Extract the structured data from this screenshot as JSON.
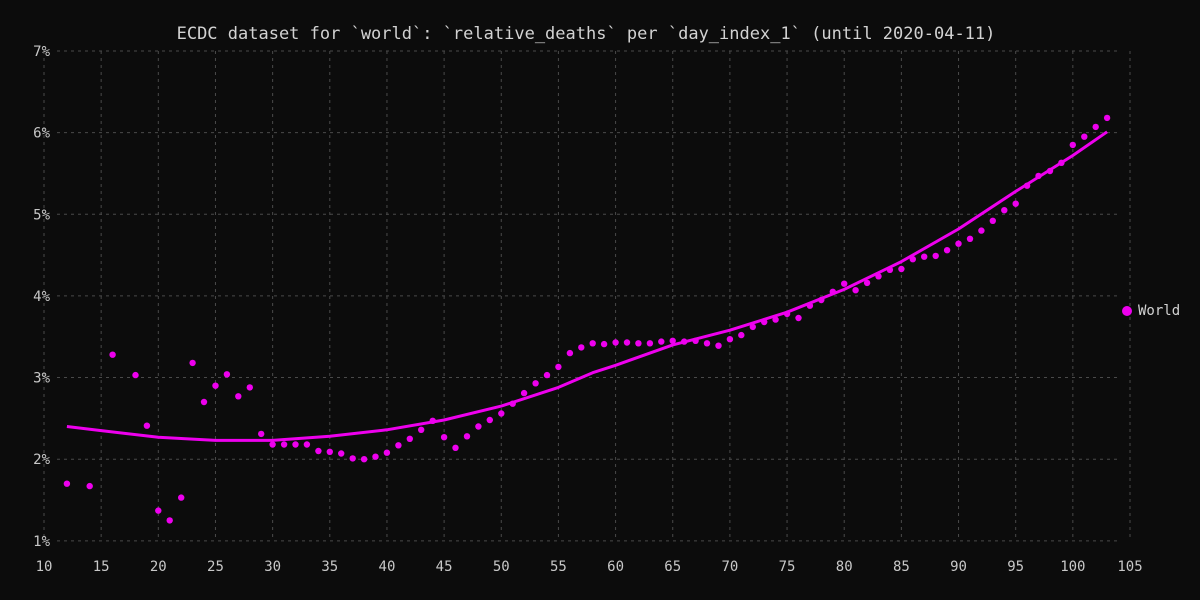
{
  "chart_data": {
    "type": "scatter",
    "title": "ECDC dataset for `world`: `relative_deaths` per `day_index_1` (until 2020-04-11)",
    "xlabel": "",
    "ylabel": "",
    "xlim": [
      10,
      105
    ],
    "ylim": [
      0.009,
      0.07
    ],
    "x_ticks": [
      "10",
      "15",
      "20",
      "25",
      "30",
      "35",
      "40",
      "45",
      "50",
      "55",
      "60",
      "65",
      "70",
      "75",
      "80",
      "85",
      "90",
      "95",
      "100",
      "105"
    ],
    "y_ticks": [
      "1%",
      "2%",
      "3%",
      "4%",
      "5%",
      "6%",
      "7%"
    ],
    "grid": true,
    "legend_position": "right",
    "series": [
      {
        "name": "World",
        "color": "#ee00ee",
        "points": [
          [
            12,
            0.017
          ],
          [
            14,
            0.0167
          ],
          [
            16,
            0.0328
          ],
          [
            18,
            0.0303
          ],
          [
            19,
            0.0241
          ],
          [
            20,
            0.0137
          ],
          [
            21,
            0.0125
          ],
          [
            22,
            0.0153
          ],
          [
            23,
            0.0318
          ],
          [
            24,
            0.027
          ],
          [
            25,
            0.029
          ],
          [
            26,
            0.0304
          ],
          [
            27,
            0.0277
          ],
          [
            28,
            0.0288
          ],
          [
            29,
            0.0231
          ],
          [
            30,
            0.0218
          ],
          [
            31,
            0.0218
          ],
          [
            32,
            0.0218
          ],
          [
            33,
            0.0218
          ],
          [
            34,
            0.021
          ],
          [
            35,
            0.0209
          ],
          [
            36,
            0.0207
          ],
          [
            37,
            0.0201
          ],
          [
            38,
            0.02
          ],
          [
            39,
            0.0203
          ],
          [
            40,
            0.0208
          ],
          [
            41,
            0.0217
          ],
          [
            42,
            0.0225
          ],
          [
            43,
            0.0236
          ],
          [
            44,
            0.0247
          ],
          [
            45,
            0.0227
          ],
          [
            46,
            0.0214
          ],
          [
            47,
            0.0228
          ],
          [
            48,
            0.024
          ],
          [
            49,
            0.0248
          ],
          [
            50,
            0.0256
          ],
          [
            51,
            0.0268
          ],
          [
            52,
            0.0281
          ],
          [
            53,
            0.0293
          ],
          [
            54,
            0.0303
          ],
          [
            55,
            0.0313
          ],
          [
            56,
            0.033
          ],
          [
            57,
            0.0337
          ],
          [
            58,
            0.0342
          ],
          [
            59,
            0.0341
          ],
          [
            60,
            0.0343
          ],
          [
            61,
            0.0343
          ],
          [
            62,
            0.0342
          ],
          [
            63,
            0.0342
          ],
          [
            64,
            0.0344
          ],
          [
            65,
            0.0345
          ],
          [
            66,
            0.0344
          ],
          [
            67,
            0.0345
          ],
          [
            68,
            0.0342
          ],
          [
            69,
            0.0339
          ],
          [
            70,
            0.0347
          ],
          [
            71,
            0.0352
          ],
          [
            72,
            0.0362
          ],
          [
            73,
            0.0368
          ],
          [
            74,
            0.0371
          ],
          [
            75,
            0.0378
          ],
          [
            76,
            0.0373
          ],
          [
            77,
            0.0388
          ],
          [
            78,
            0.0395
          ],
          [
            79,
            0.0405
          ],
          [
            80,
            0.0415
          ],
          [
            81,
            0.0407
          ],
          [
            82,
            0.0416
          ],
          [
            83,
            0.0424
          ],
          [
            84,
            0.0432
          ],
          [
            85,
            0.0433
          ],
          [
            86,
            0.0445
          ],
          [
            87,
            0.0448
          ],
          [
            88,
            0.0449
          ],
          [
            89,
            0.0456
          ],
          [
            90,
            0.0464
          ],
          [
            91,
            0.047
          ],
          [
            92,
            0.048
          ],
          [
            93,
            0.0492
          ],
          [
            94,
            0.0505
          ],
          [
            95,
            0.0513
          ],
          [
            96,
            0.0535
          ],
          [
            97,
            0.0547
          ],
          [
            98,
            0.0553
          ],
          [
            99,
            0.0563
          ],
          [
            100,
            0.0585
          ],
          [
            101,
            0.0595
          ],
          [
            102,
            0.0607
          ],
          [
            103,
            0.0618
          ]
        ]
      },
      {
        "type": "line",
        "color": "#ee00ee",
        "points": [
          [
            12,
            0.024
          ],
          [
            15,
            0.0235
          ],
          [
            20,
            0.0227
          ],
          [
            25,
            0.0223
          ],
          [
            30,
            0.0223
          ],
          [
            35,
            0.0228
          ],
          [
            40,
            0.0236
          ],
          [
            45,
            0.0248
          ],
          [
            50,
            0.0265
          ],
          [
            55,
            0.0288
          ],
          [
            58,
            0.0306
          ],
          [
            60,
            0.0315
          ],
          [
            65,
            0.034
          ],
          [
            70,
            0.0358
          ],
          [
            75,
            0.038
          ],
          [
            80,
            0.0408
          ],
          [
            85,
            0.0442
          ],
          [
            90,
            0.0482
          ],
          [
            95,
            0.0528
          ],
          [
            100,
            0.0572
          ],
          [
            103,
            0.0601
          ]
        ]
      }
    ]
  }
}
